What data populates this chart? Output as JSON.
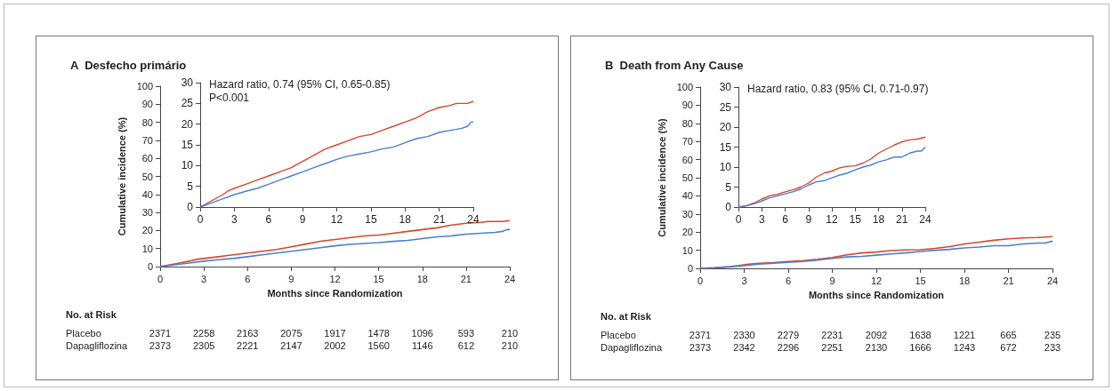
{
  "chart_data": [
    {
      "type": "line",
      "title": "A  Desfecho primário",
      "xlabel": "Months since Randomization",
      "ylabel": "Cumulative incidence (%)",
      "xlim": [
        0,
        24
      ],
      "xticks": [
        0,
        3,
        6,
        9,
        12,
        15,
        18,
        21,
        24
      ],
      "ylim": [
        0,
        100
      ],
      "yticks": [
        0,
        10,
        20,
        30,
        40,
        50,
        60,
        70,
        80,
        90,
        100
      ],
      "marker": "none",
      "line_style": "solid",
      "series": [
        {
          "color": "#d9462b",
          "x": [
            0,
            1,
            2,
            2.5,
            3,
            4,
            5,
            6,
            7,
            8,
            9,
            10,
            11,
            12,
            13,
            14,
            15,
            16,
            17,
            18,
            19,
            20,
            21,
            22,
            22.5,
            23.5,
            24
          ],
          "values": [
            0,
            1.5,
            3,
            4,
            4.5,
            5.5,
            6.5,
            7.5,
            8.5,
            9.5,
            11,
            12.5,
            14,
            15,
            16,
            17,
            17.5,
            18.5,
            19.5,
            20.5,
            21.5,
            23,
            24,
            24.5,
            25,
            25,
            25.5
          ]
        },
        {
          "color": "#4a7fd1",
          "x": [
            0,
            1,
            2,
            3,
            4,
            5,
            6,
            7,
            8,
            9,
            10,
            11,
            12,
            13,
            14,
            15,
            16,
            17,
            18,
            19,
            20,
            21,
            22,
            23,
            23.5,
            23.8,
            24
          ],
          "values": [
            0,
            1,
            2,
            3,
            3.8,
            4.5,
            5.5,
            6.5,
            7.5,
            8.5,
            9.5,
            10.5,
            11.5,
            12.3,
            12.8,
            13.3,
            14,
            14.5,
            15.5,
            16.5,
            17,
            18,
            18.5,
            19,
            19.5,
            20.5,
            20.5
          ]
        }
      ],
      "annotations": [
        "No. at Risk",
        "Placebo",
        "2371",
        "2258",
        "2163",
        "2075",
        "1917",
        "1478",
        "1096",
        "593",
        "210",
        "Dapagliflozina",
        "2373",
        "2305",
        "2221",
        "2147",
        "2002",
        "1560",
        "1146",
        "612",
        "210"
      ]
    },
    {
      "type": "line",
      "xlim": [
        0,
        24
      ],
      "xticks": [
        0,
        3,
        6,
        9,
        12,
        15,
        18,
        21,
        24
      ],
      "ylim": [
        0,
        30
      ],
      "yticks": [
        0,
        5,
        10,
        15,
        20,
        25,
        30
      ],
      "marker": "none",
      "line_style": "solid",
      "series": [
        {
          "color": "#d9462b",
          "x": [
            0,
            1,
            2,
            2.5,
            3,
            4,
            5,
            6,
            7,
            8,
            9,
            10,
            11,
            12,
            13,
            14,
            15,
            16,
            17,
            18,
            19,
            20,
            21,
            22,
            22.5,
            23.5,
            24
          ],
          "values": [
            0,
            1.5,
            3,
            4,
            4.5,
            5.5,
            6.5,
            7.5,
            8.5,
            9.5,
            11,
            12.5,
            14,
            15,
            16,
            17,
            17.5,
            18.5,
            19.5,
            20.5,
            21.5,
            23,
            24,
            24.5,
            25,
            25,
            25.5
          ]
        },
        {
          "color": "#4a7fd1",
          "x": [
            0,
            1,
            2,
            3,
            4,
            5,
            6,
            7,
            8,
            9,
            10,
            11,
            12,
            13,
            14,
            15,
            16,
            17,
            18,
            19,
            20,
            21,
            22,
            23,
            23.5,
            23.8,
            24
          ],
          "values": [
            0,
            1,
            2,
            3,
            3.8,
            4.5,
            5.5,
            6.5,
            7.5,
            8.5,
            9.5,
            10.5,
            11.5,
            12.3,
            12.8,
            13.3,
            14,
            14.5,
            15.5,
            16.5,
            17,
            18,
            18.5,
            19,
            19.5,
            20.5,
            20.5
          ]
        }
      ],
      "annotations": [
        "Hazard ratio, 0.74 (95% CI, 0.65-0.85)",
        "P<0.001"
      ]
    },
    {
      "type": "line",
      "title": "B  Death from Any Cause",
      "xlabel": "Months since Randomization",
      "ylabel": "Cumulative incidence (%)",
      "xlim": [
        0,
        24
      ],
      "xticks": [
        0,
        3,
        6,
        9,
        12,
        15,
        18,
        21,
        24
      ],
      "ylim": [
        0,
        100
      ],
      "yticks": [
        0,
        10,
        20,
        30,
        40,
        50,
        60,
        70,
        80,
        90,
        100
      ],
      "marker": "none",
      "line_style": "solid",
      "series": [
        {
          "color": "#d9462b",
          "x": [
            0,
            1,
            2,
            3,
            4,
            5,
            6,
            7,
            8,
            9,
            10,
            11,
            12,
            13,
            14,
            15,
            16,
            17,
            18,
            19,
            20,
            21,
            22,
            23,
            24
          ],
          "values": [
            0,
            0.3,
            1,
            2,
            2.8,
            3.2,
            3.8,
            4.3,
            5,
            6,
            7.5,
            8.5,
            9,
            9.8,
            10.2,
            10.3,
            11,
            12,
            13.5,
            14.5,
            15.5,
            16.3,
            16.8,
            17,
            17.5
          ]
        },
        {
          "color": "#4a7fd1",
          "x": [
            0,
            1,
            2,
            3,
            4,
            5,
            6,
            7,
            8,
            9,
            10,
            11,
            12,
            13,
            14,
            15,
            16,
            17,
            18,
            19,
            20,
            21,
            22,
            23,
            23.5,
            24
          ],
          "values": [
            0,
            0.3,
            0.8,
            1.5,
            2.3,
            2.8,
            3.3,
            3.8,
            4.5,
            5.5,
            6.3,
            6.6,
            7.3,
            8,
            8.5,
            9.3,
            10,
            10.5,
            11.3,
            11.8,
            12.5,
            12.5,
            13.5,
            14,
            14,
            15
          ]
        }
      ],
      "annotations": [
        "No. at Risk",
        "Placebo",
        "2371",
        "2330",
        "2279",
        "2231",
        "2092",
        "1638",
        "1221",
        "665",
        "235",
        "Dapagliflozina",
        "2373",
        "2342",
        "2296",
        "2251",
        "2130",
        "1666",
        "1243",
        "672",
        "233"
      ]
    },
    {
      "type": "line",
      "xlim": [
        0,
        24
      ],
      "xticks": [
        0,
        3,
        6,
        9,
        12,
        15,
        18,
        21,
        24
      ],
      "ylim": [
        0,
        30
      ],
      "yticks": [
        0,
        5,
        10,
        15,
        20,
        25,
        30
      ],
      "marker": "none",
      "line_style": "solid",
      "series": [
        {
          "color": "#d9462b",
          "x": [
            0,
            1,
            2,
            3,
            4,
            5,
            6,
            7,
            8,
            9,
            10,
            11,
            12,
            13,
            14,
            15,
            16,
            17,
            18,
            19,
            20,
            21,
            22,
            23,
            24
          ],
          "values": [
            0,
            0.3,
            1,
            2,
            2.8,
            3.2,
            3.8,
            4.3,
            5,
            6,
            7.5,
            8.5,
            9,
            9.8,
            10.2,
            10.3,
            11,
            12,
            13.5,
            14.5,
            15.5,
            16.3,
            16.8,
            17,
            17.5
          ]
        },
        {
          "color": "#4a7fd1",
          "x": [
            0,
            1,
            2,
            3,
            4,
            5,
            6,
            7,
            8,
            9,
            10,
            11,
            12,
            13,
            14,
            15,
            16,
            17,
            18,
            19,
            20,
            21,
            22,
            23,
            23.5,
            24
          ],
          "values": [
            0,
            0.3,
            0.8,
            1.5,
            2.3,
            2.8,
            3.3,
            3.8,
            4.5,
            5.5,
            6.3,
            6.6,
            7.3,
            8,
            8.5,
            9.3,
            10,
            10.5,
            11.3,
            11.8,
            12.5,
            12.5,
            13.5,
            14,
            14,
            15
          ]
        }
      ],
      "annotations": [
        "Hazard ratio, 0.83 (95% CI, 0.71-0.97)"
      ]
    }
  ]
}
